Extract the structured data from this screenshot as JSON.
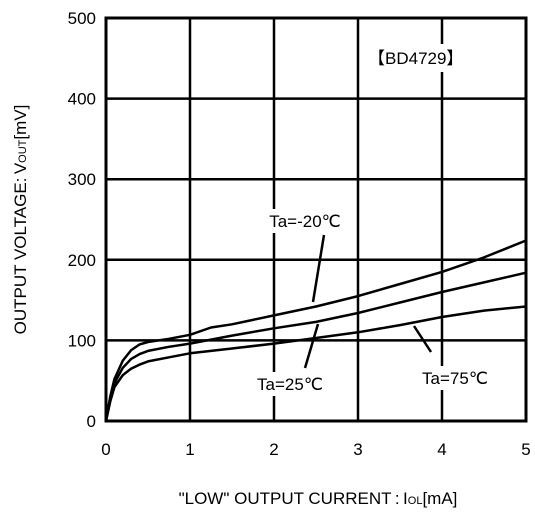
{
  "chart_data": {
    "type": "line",
    "title": "",
    "xlabel": "\"LOW\" OUTPUT CURRENT : I",
    "xlabel_sub": "OL",
    "xlabel_unit": "[mA]",
    "ylabel": "OUTPUT VOLTAGE: V",
    "ylabel_sub": "OUT",
    "ylabel_unit": "[mV]",
    "xlim": [
      0,
      5
    ],
    "ylim": [
      0,
      500
    ],
    "x_ticks": [
      "0",
      "1",
      "2",
      "3",
      "4",
      "5"
    ],
    "y_ticks": [
      "0",
      "100",
      "200",
      "300",
      "400",
      "500"
    ],
    "grid": true,
    "part_label": "【BD4729】",
    "series": [
      {
        "name": "Ta=-20℃",
        "x": [
          0,
          0.05,
          0.1,
          0.2,
          0.3,
          0.4,
          0.5,
          0.75,
          1,
          1.25,
          1.5,
          2,
          2.5,
          3,
          3.5,
          4,
          4.5,
          5
        ],
        "y": [
          0,
          30,
          52,
          75,
          88,
          95,
          98,
          102,
          107,
          116,
          120,
          131,
          142,
          155,
          170,
          185,
          203,
          224
        ]
      },
      {
        "name": "Ta=25℃",
        "x": [
          0,
          0.05,
          0.1,
          0.2,
          0.3,
          0.4,
          0.5,
          0.75,
          1,
          1.5,
          2,
          2.5,
          3,
          3.5,
          4,
          4.5,
          5
        ],
        "y": [
          0,
          27,
          47,
          66,
          77,
          83,
          87,
          92,
          96,
          106,
          115,
          123,
          134,
          147,
          160,
          172,
          184
        ]
      },
      {
        "name": "Ta=75℃",
        "x": [
          0,
          0.05,
          0.1,
          0.2,
          0.3,
          0.4,
          0.5,
          0.75,
          1,
          1.5,
          2,
          2.5,
          3,
          3.5,
          4,
          4.5,
          5
        ],
        "y": [
          0,
          24,
          42,
          57,
          65,
          70,
          74,
          79,
          84,
          90,
          96,
          103,
          110,
          119,
          129,
          137,
          142
        ]
      }
    ],
    "annotations": [
      {
        "label": "Ta=-20℃",
        "series_index": 0
      },
      {
        "label": "Ta=25℃",
        "series_index": 1
      },
      {
        "label": "Ta=75℃",
        "series_index": 2
      }
    ]
  }
}
